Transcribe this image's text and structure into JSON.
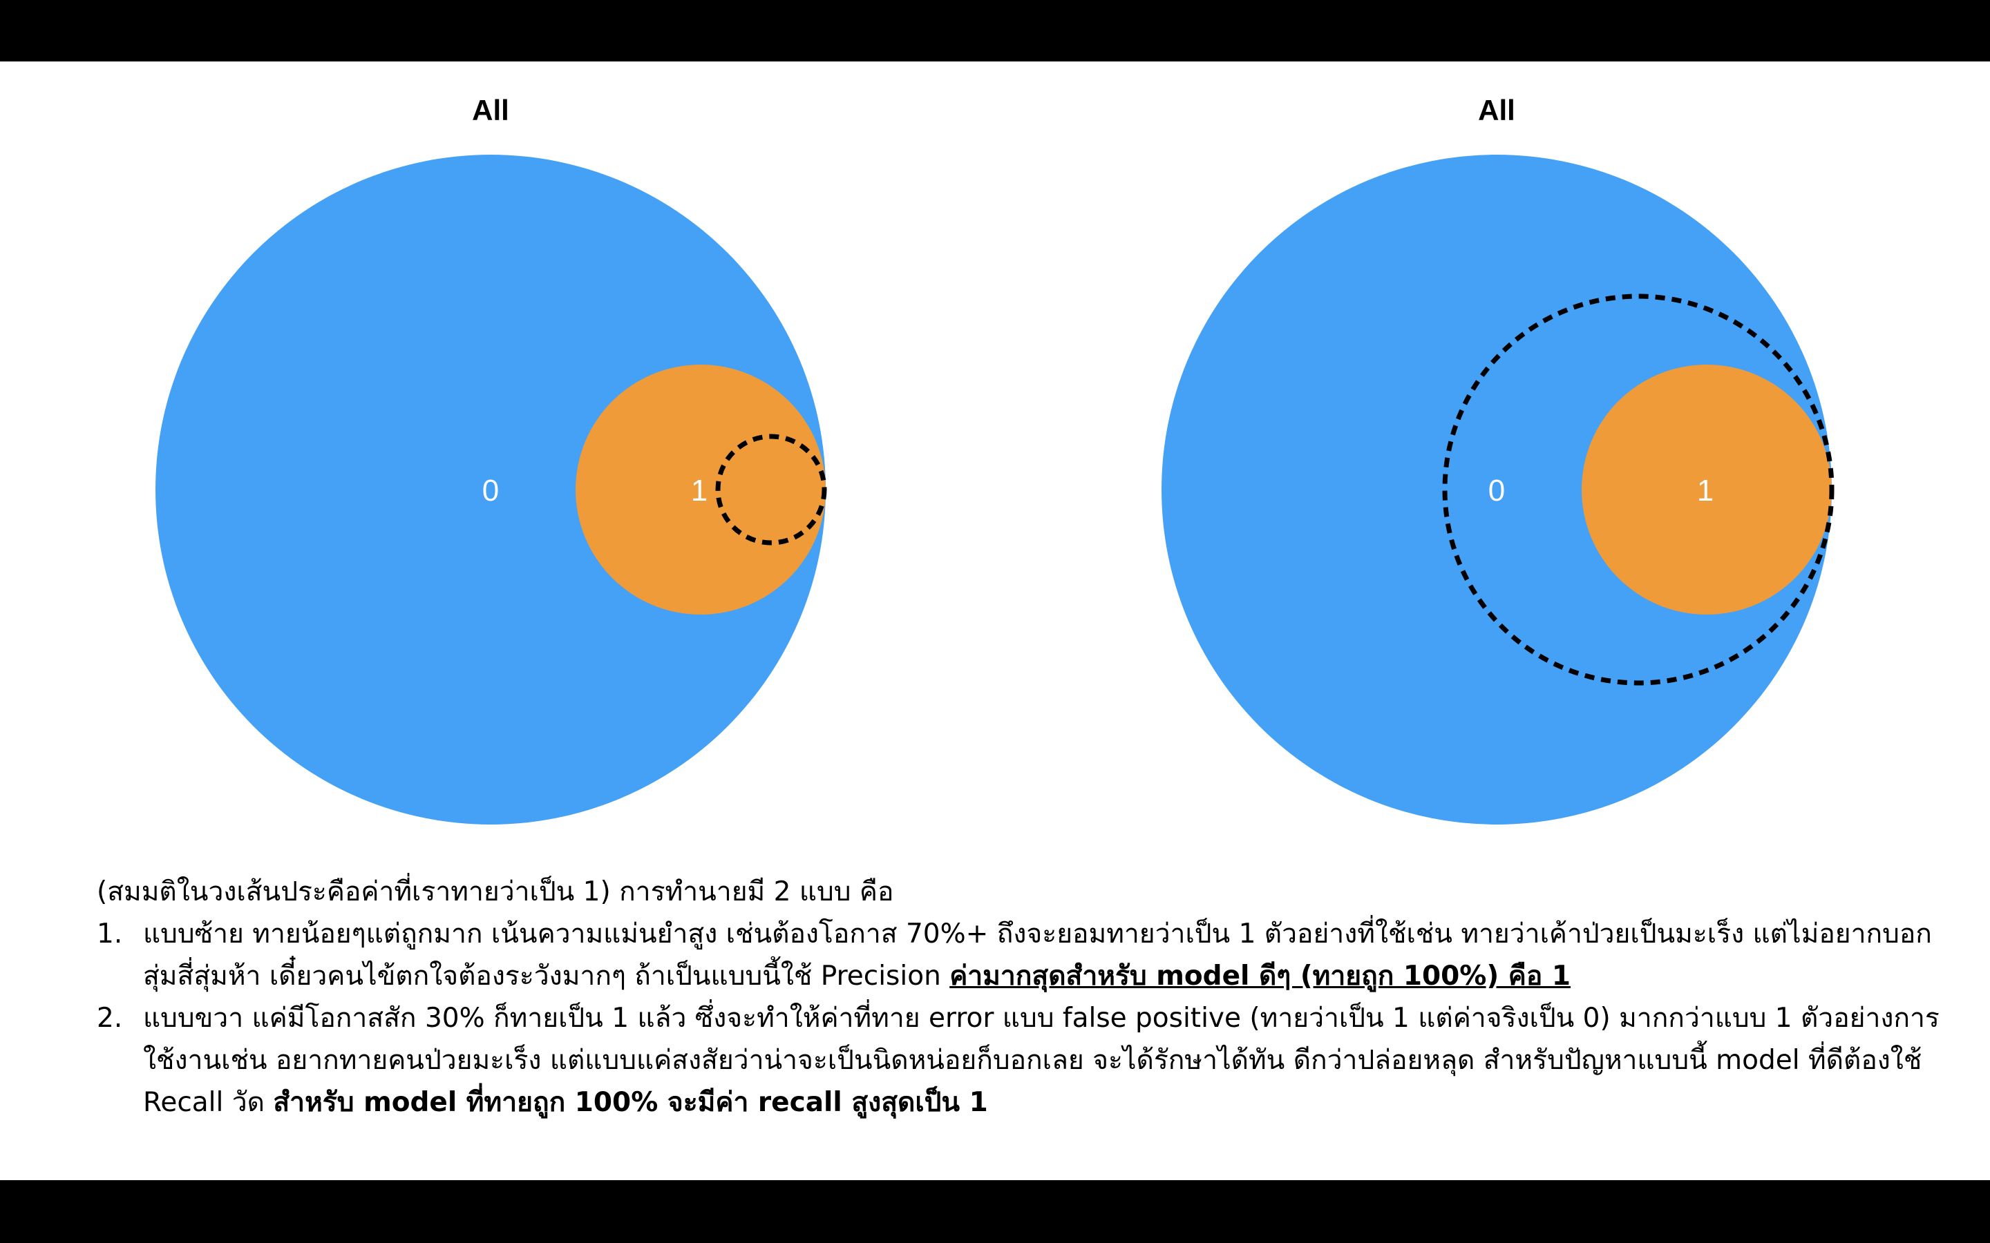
{
  "colors": {
    "outer_circle": "#44a1f6",
    "inner_circle": "#ef9b3a",
    "dashed_outline": "#000000",
    "region_label": "#ffffff"
  },
  "panels": [
    {
      "title": "All",
      "outer_label": "0",
      "inner_label": "1",
      "prediction_circle": "small dashed circle inside class 1"
    },
    {
      "title": "All",
      "outer_label": "0",
      "inner_label": "1",
      "prediction_circle": "large dashed circle enclosing class 1 and part of class 0"
    }
  ],
  "text": {
    "intro": "(สมมติในวงเส้นประคือค่าที่เราทายว่าเป็น 1) การทำนายมี 2 แบบ คือ",
    "items": [
      {
        "number": "1.",
        "text": "แบบซ้าย ทายน้อยๆแต่ถูกมาก เน้นความแม่นยำสูง เช่นต้องโอกาส 70%+ ถึงจะยอมทายว่าเป็น 1 ตัวอย่างที่ใช้เช่น ทายว่าเค้าป่วยเป็นมะเร็ง แต่ไม่อยากบอกสุ่มสี่สุ่มห้า เดี๋ยวคนไข้ตกใจต้องระวังมากๆ ถ้าเป็นแบบนี้ใช้ Precision ",
        "emphasis": "ค่ามากสุดสำหรับ model ดีๆ (ทายถูก 100%) คือ 1"
      },
      {
        "number": "2.",
        "text": "แบบขวา แค่มีโอกาสสัก 30% ก็ทายเป็น 1 แล้ว ซึ่งจะทำให้ค่าที่ทาย error แบบ false positive (ทายว่าเป็น 1 แต่ค่าจริงเป็น 0) มากกว่าแบบ 1 ตัวอย่างการใช้งานเช่น อยากทายคนป่วยมะเร็ง แต่แบบแค่สงสัยว่าน่าจะเป็นนิดหน่อยก็บอกเลย จะได้รักษาได้ทัน ดีกว่าปล่อยหลุด สำหรับปัญหาแบบนี้ model ที่ดีต้องใช้ Recall วัด ",
        "emphasis": "สำหรับ model ที่ทายถูก 100% จะมีค่า recall สูงสุดเป็น 1"
      }
    ]
  }
}
